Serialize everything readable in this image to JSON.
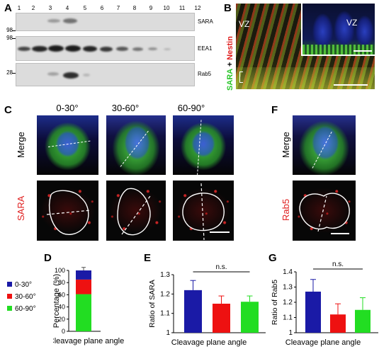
{
  "panel_labels": {
    "A": "A",
    "B": "B",
    "C": "C",
    "D": "D",
    "E": "E",
    "F": "F",
    "G": "G"
  },
  "blot": {
    "lanes": [
      "1",
      "2",
      "3",
      "4",
      "5",
      "6",
      "7",
      "8",
      "9",
      "10",
      "11",
      "12"
    ],
    "rows": [
      {
        "name": "SARA",
        "mw": "98"
      },
      {
        "name": "EEA1",
        "mw": "98"
      },
      {
        "name": "Rab5",
        "mw": "28"
      }
    ]
  },
  "panel_b": {
    "vz_main": "VZ",
    "vz_inset": "VZ",
    "stain_green": "SARA",
    "stain_plus": " + ",
    "stain_red": "Nestin",
    "colors": {
      "green": "#29c629",
      "red": "#e02020"
    }
  },
  "panel_c": {
    "columns": [
      "0-30°",
      "30-60°",
      "60-90°"
    ],
    "rows": [
      "Merge",
      "SARA"
    ]
  },
  "panel_f": {
    "rows": [
      "Merge",
      "Rab5"
    ]
  },
  "chart_data": [
    {
      "panel": "D",
      "type": "bar",
      "stacked": true,
      "categories": [
        ""
      ],
      "series": [
        {
          "name": "60-90°",
          "values": [
            61
          ],
          "color": "#22dd22"
        },
        {
          "name": "30-60°",
          "values": [
            24
          ],
          "color": "#ee1111"
        },
        {
          "name": "0-30°",
          "values": [
            15
          ],
          "color": "#1a1aa6"
        }
      ],
      "error_top": [
        5
      ],
      "ylabel": "Percentage (%)",
      "xlabel": "Cleavage plane angle",
      "ylim": [
        0,
        100
      ],
      "yticks": [
        0,
        20,
        40,
        60,
        80,
        100
      ],
      "legend": {
        "placement": "left",
        "entries": [
          "0-30°",
          "30-60°",
          "60-90°"
        ]
      }
    },
    {
      "panel": "E",
      "type": "bar",
      "categories": [
        "0-30°",
        "30-60°",
        "60-90°"
      ],
      "values": [
        1.22,
        1.15,
        1.16
      ],
      "errors": [
        0.05,
        0.04,
        0.03
      ],
      "colors": [
        "#1a1aa6",
        "#ee1111",
        "#22dd22"
      ],
      "ylabel": "Ratio of SARA",
      "xlabel": "Cleavage plane angle",
      "ylim": [
        1,
        1.3
      ],
      "yticks": [
        "1",
        "1.1",
        "1.2",
        "1.3"
      ],
      "significance": "n.s."
    },
    {
      "panel": "G",
      "type": "bar",
      "categories": [
        "0-30°",
        "30-60°",
        "60-90°"
      ],
      "values": [
        1.27,
        1.12,
        1.15
      ],
      "errors": [
        0.08,
        0.07,
        0.08
      ],
      "colors": [
        "#1a1aa6",
        "#ee1111",
        "#22dd22"
      ],
      "ylabel": "Ratio of Rab5",
      "xlabel": "Cleavage plane angle",
      "ylim": [
        1,
        1.4
      ],
      "yticks": [
        "1",
        "1.1",
        "1.2",
        "1.3",
        "1.4"
      ],
      "significance": "n.s."
    }
  ]
}
